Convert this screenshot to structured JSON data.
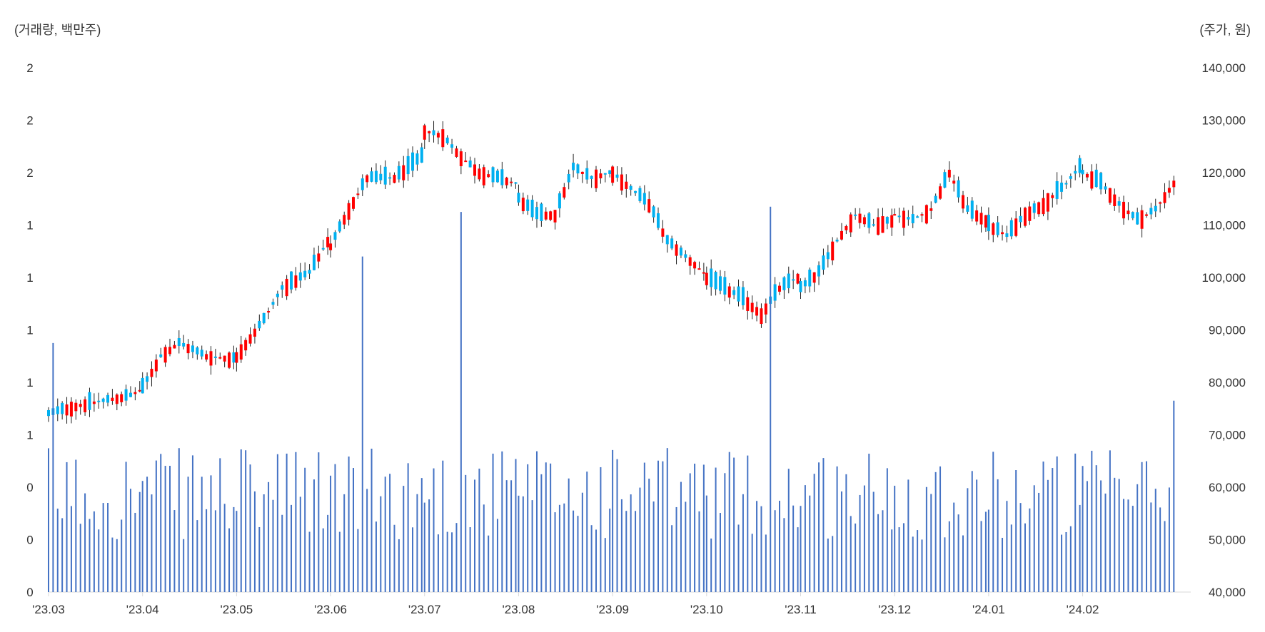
{
  "chart_data": {
    "type": "candlestick+bar",
    "left_axis_unit": "(거래량, 백만주)",
    "right_axis_unit": "(주가, 원)",
    "left_axis_ticks": [
      "0",
      "0",
      "0",
      "1",
      "1",
      "1",
      "1",
      "1",
      "2",
      "2",
      "2"
    ],
    "right_axis_ticks": [
      "40,000",
      "50,000",
      "60,000",
      "70,000",
      "80,000",
      "90,000",
      "100,000",
      "110,000",
      "120,000",
      "130,000",
      "140,000"
    ],
    "price_range": [
      40000,
      140000
    ],
    "x_tick_labels": [
      "'23.03",
      "'23.04",
      "'23.05",
      "'23.06",
      "'23.07",
      "'23.08",
      "'23.09",
      "'23.10",
      "'23.11",
      "'23.12",
      "'24.01",
      "'24.02"
    ],
    "colors": {
      "up": "#ff0000",
      "down": "#00b0f0",
      "wick": "#222222",
      "volume": "#4472c4",
      "axis": "#d9d9d9"
    },
    "candles": [
      {
        "month": "'23.03",
        "points": [
          [
            0,
            74000
          ],
          [
            0.3,
            75500
          ],
          [
            0.6,
            76500
          ],
          [
            0.9,
            77500
          ],
          [
            1,
            78500
          ]
        ]
      },
      {
        "month": "'23.04",
        "points": [
          [
            0,
            79000
          ],
          [
            0.2,
            85000
          ],
          [
            0.4,
            87500
          ],
          [
            0.7,
            85000
          ],
          [
            1,
            84500
          ]
        ]
      },
      {
        "month": "'23.05",
        "points": [
          [
            0,
            85000
          ],
          [
            0.3,
            92000
          ],
          [
            0.5,
            98000
          ],
          [
            0.8,
            101000
          ],
          [
            1,
            107000
          ]
        ]
      },
      {
        "month": "'23.06",
        "points": [
          [
            0,
            106000
          ],
          [
            0.2,
            113000
          ],
          [
            0.4,
            119000
          ],
          [
            0.7,
            119000
          ],
          [
            1,
            123000
          ]
        ]
      },
      {
        "month": "'23.07",
        "points": [
          [
            0,
            128000
          ],
          [
            0.2,
            127000
          ],
          [
            0.4,
            123000
          ],
          [
            0.6,
            120000
          ],
          [
            0.8,
            119000
          ],
          [
            1,
            118000
          ]
        ]
      },
      {
        "month": "'23.08",
        "points": [
          [
            0,
            115000
          ],
          [
            0.2,
            112000
          ],
          [
            0.4,
            112000
          ],
          [
            0.6,
            121000
          ],
          [
            0.8,
            119000
          ],
          [
            1,
            120000
          ]
        ]
      },
      {
        "month": "'23.09",
        "points": [
          [
            0,
            120000
          ],
          [
            0.2,
            117000
          ],
          [
            0.4,
            114000
          ],
          [
            0.6,
            107000
          ],
          [
            0.8,
            104000
          ],
          [
            1,
            101000
          ]
        ]
      },
      {
        "month": "'23.10",
        "points": [
          [
            0,
            100000
          ],
          [
            0.2,
            98000
          ],
          [
            0.4,
            96000
          ],
          [
            0.6,
            93000
          ],
          [
            0.8,
            98000
          ],
          [
            1,
            100000
          ]
        ]
      },
      {
        "month": "'23.11",
        "points": [
          [
            0,
            98000
          ],
          [
            0.2,
            101000
          ],
          [
            0.4,
            107000
          ],
          [
            0.6,
            112000
          ],
          [
            0.8,
            110000
          ],
          [
            1,
            111000
          ]
        ]
      },
      {
        "month": "'23.12",
        "points": [
          [
            0,
            112000
          ],
          [
            0.2,
            111000
          ],
          [
            0.4,
            113000
          ],
          [
            0.6,
            120000
          ],
          [
            0.8,
            113000
          ],
          [
            1,
            111000
          ]
        ]
      },
      {
        "month": "'24.01",
        "points": [
          [
            0,
            110000
          ],
          [
            0.2,
            108000
          ],
          [
            0.4,
            112000
          ],
          [
            0.6,
            114000
          ],
          [
            0.8,
            117000
          ],
          [
            1,
            121000
          ]
        ]
      },
      {
        "month": "'24.02",
        "points": [
          [
            0,
            120000
          ],
          [
            0.2,
            118000
          ],
          [
            0.4,
            114000
          ],
          [
            0.6,
            111000
          ],
          [
            0.8,
            113000
          ],
          [
            1,
            118000
          ]
        ]
      }
    ],
    "volume_spikes": [
      {
        "month": "'23.03",
        "day": 0.04,
        "value": 0.95
      },
      {
        "month": "'23.06",
        "day": 0.35,
        "value": 1.28
      },
      {
        "month": "'23.07",
        "day": 0.39,
        "value": 1.45
      },
      {
        "month": "'23.10",
        "day": 0.68,
        "value": 1.47
      },
      {
        "month": "'24.02",
        "day": 1.0,
        "value": 0.73
      }
    ]
  }
}
